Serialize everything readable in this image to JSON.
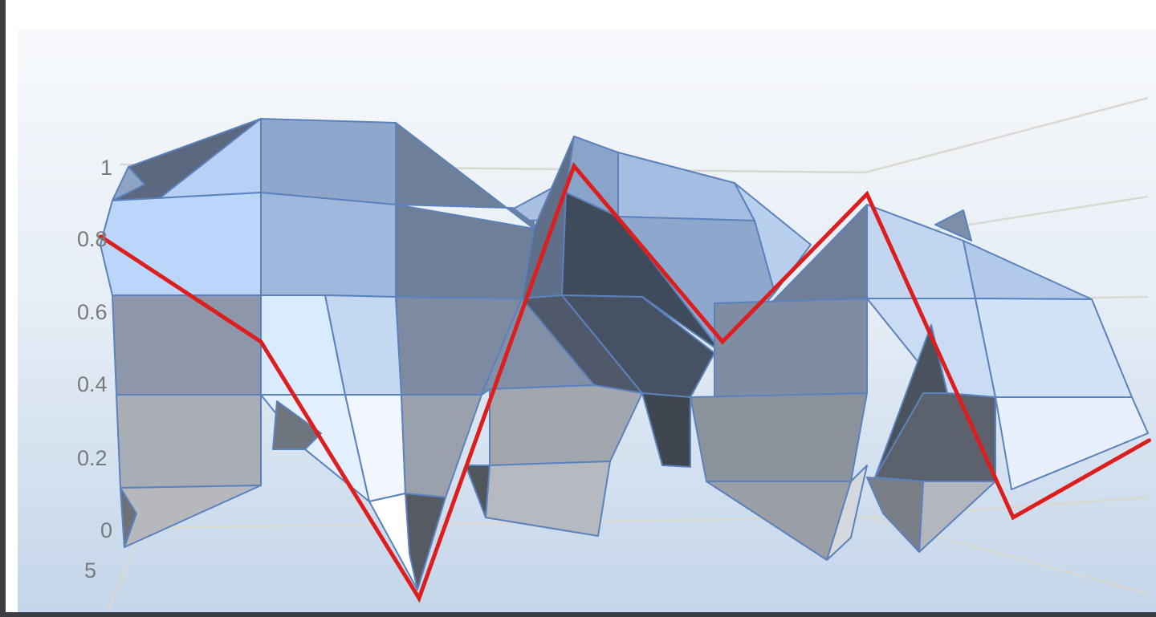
{
  "chart_data": {
    "type": "surface",
    "title": "",
    "xlabel": "",
    "ylabel": "",
    "zlim": [
      0,
      1
    ],
    "z_ticks": [
      "0",
      "0.2",
      "0.4",
      "0.6",
      "0.8",
      "1"
    ],
    "depth_tick": "5",
    "grid": true,
    "colors": {
      "surface_light": "#cfe2fb",
      "surface_mid": "#8ea6c8",
      "surface_dark": "#3f4b5e",
      "wire": "#5b82bd",
      "front_line": "#dc1e1e",
      "gridline": "#d9d9d2"
    },
    "front_series": {
      "x": [
        0,
        1,
        2,
        3,
        4,
        5,
        6,
        7
      ],
      "values": [
        0.83,
        0.53,
        -0.2,
        1.03,
        0.53,
        0.95,
        0.03,
        0.25
      ]
    }
  }
}
